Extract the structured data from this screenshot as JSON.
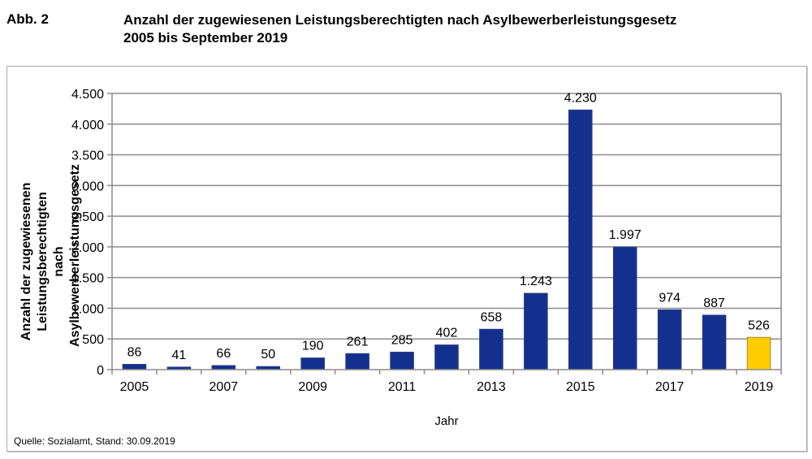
{
  "header": {
    "figure_label": "Abb. 2",
    "title_line1": "Anzahl der zugewiesenen Leistungsberechtigten nach Asylbewerberleistungsgesetz",
    "title_line2": "2005 bis September 2019"
  },
  "footer": {
    "source": "Quelle: Sozialamt, Stand: 30.09.2019"
  },
  "chart_data": {
    "type": "bar",
    "title": "Anzahl der zugewiesenen Leistungsberechtigten nach Asylbewerberleistungsgesetz 2005 bis September 2019",
    "xlabel": "Jahr",
    "ylabel_lines": [
      "Anzahl der zugewiesenen",
      "Leistungsberechtigten nach",
      "Asylbewerberleistungsgesetz"
    ],
    "categories": [
      "2005",
      "2006",
      "2007",
      "2008",
      "2009",
      "2010",
      "2011",
      "2012",
      "2013",
      "2014",
      "2015",
      "2016",
      "2017",
      "2018",
      "2019"
    ],
    "values": [
      86,
      41,
      66,
      50,
      190,
      261,
      285,
      402,
      658,
      1243,
      4230,
      1997,
      974,
      887,
      526
    ],
    "value_labels": [
      "86",
      "41",
      "66",
      "50",
      "190",
      "261",
      "285",
      "402",
      "658",
      "1.243",
      "4.230",
      "1.997",
      "974",
      "887",
      "526"
    ],
    "x_tick_labels_shown": [
      "2005",
      "2007",
      "2009",
      "2011",
      "2013",
      "2015",
      "2017",
      "2019"
    ],
    "ylim": [
      0,
      4500
    ],
    "y_ticks": [
      0,
      500,
      1000,
      1500,
      2000,
      2500,
      3000,
      3500,
      4000,
      4500
    ],
    "y_tick_labels": [
      "0",
      "500",
      "1.000",
      "1.500",
      "2.000",
      "2.500",
      "3.000",
      "3.500",
      "4.000",
      "4.500"
    ],
    "grid": true,
    "legend": "none",
    "colors": {
      "bar": "#14308f",
      "highlight_bar": "#ffcc00",
      "highlight_category": "2019",
      "grid": "#8c8c8c"
    }
  }
}
